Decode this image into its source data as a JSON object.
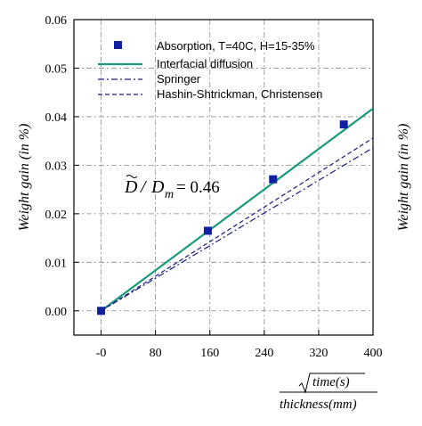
{
  "chart_data": {
    "type": "scatter",
    "xlim": [
      -40,
      400
    ],
    "ylim": [
      -0.005,
      0.06
    ],
    "x_ticks": [
      0,
      80,
      160,
      240,
      320,
      400
    ],
    "x_tick_labels": [
      "-0",
      "80",
      "160",
      "240",
      "320",
      "400"
    ],
    "y_ticks": [
      0,
      0.01,
      0.02,
      0.03,
      0.04,
      0.05,
      0.06
    ],
    "y_tick_labels": [
      "0.00",
      "0.01",
      "0.02",
      "0.03",
      "0.04",
      "0.05",
      "0.06"
    ],
    "ylabel": "Weight gain (in %)",
    "right_label": "Weight gain (in %)",
    "xlabel_numerator": "time(s)",
    "xlabel_denominator": "thickness(mm)",
    "grid": true,
    "legend_position": "top-left",
    "annotation": {
      "lhs": "D",
      "slash": "/",
      "rhs": "D",
      "subscript": "m",
      "value": "= 0.46"
    },
    "series": [
      {
        "name": "Absorption, T=40C, H=15-35%",
        "kind": "points",
        "color": "#1020a0",
        "x": [
          0,
          157,
          253,
          357
        ],
        "y": [
          0.0,
          0.0165,
          0.0271,
          0.0384
        ]
      },
      {
        "name": "Interfacial diffusion",
        "kind": "line",
        "style": "solid",
        "color": "#1a9a7a",
        "x": [
          0,
          400
        ],
        "y": [
          0.0,
          0.0417
        ]
      },
      {
        "name": "Springer",
        "kind": "line",
        "style": "dashdot",
        "color": "#1a1a80",
        "x": [
          0,
          400
        ],
        "y": [
          0.0,
          0.0336
        ]
      },
      {
        "name": "Hashin-Shtrickman, Christensen",
        "kind": "line",
        "style": "dashed",
        "color": "#1a1a80",
        "x": [
          0,
          400
        ],
        "y": [
          0.0,
          0.0356
        ]
      }
    ]
  }
}
